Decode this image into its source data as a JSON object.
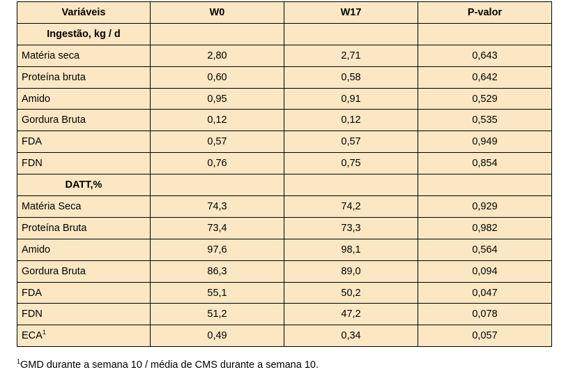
{
  "table": {
    "headers": [
      "Variáveis",
      "W0",
      "W17",
      "P-valor"
    ],
    "sections": [
      {
        "title": "Ingestão, kg / d",
        "rows": [
          {
            "label": "Matéria seca",
            "w0": "2,80",
            "w17": "2,71",
            "p": "0,643"
          },
          {
            "label": "Proteína bruta",
            "w0": "0,60",
            "w17": "0,58",
            "p": "0,642"
          },
          {
            "label": "Amido",
            "w0": "0,95",
            "w17": "0,91",
            "p": "0,529"
          },
          {
            "label": "Gordura Bruta",
            "w0": "0,12",
            "w17": "0,12",
            "p": "0,535"
          },
          {
            "label": "FDA",
            "w0": "0,57",
            "w17": "0,57",
            "p": "0,949"
          },
          {
            "label": "FDN",
            "w0": "0,76",
            "w17": "0,75",
            "p": "0,854"
          }
        ]
      },
      {
        "title": "DATT,%",
        "rows": [
          {
            "label": "Matéria Seca",
            "w0": "74,3",
            "w17": "74,2",
            "p": "0,929"
          },
          {
            "label": "Proteína Bruta",
            "w0": "73,4",
            "w17": "73,3",
            "p": "0,982"
          },
          {
            "label": "Amido",
            "w0": "97,6",
            "w17": "98,1",
            "p": "0,564"
          },
          {
            "label": "Gordura Bruta",
            "w0": "86,3",
            "w17": "89,0",
            "p": "0,094"
          },
          {
            "label": "FDA",
            "w0": "55,1",
            "w17": "50,2",
            "p": "0,047"
          },
          {
            "label": "FDN",
            "w0": "51,2",
            "w17": "47,2",
            "p": "0,078"
          },
          {
            "label": "ECA",
            "sup": "1",
            "w0": "0,49",
            "w17": "0,34",
            "p": "0,057"
          }
        ]
      }
    ]
  },
  "footnote": {
    "marker": "1",
    "text": "GMD durante a semana 10 / média de CMS durante a semana 10."
  },
  "colors": {
    "table_background": "#fbe7c3",
    "border": "#000000"
  }
}
